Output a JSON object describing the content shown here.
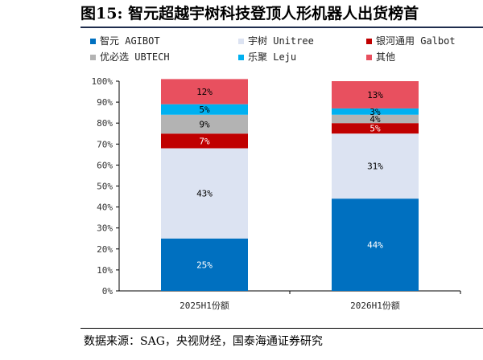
{
  "title": "图15:  智元超越宇树科技登顶人形机器人出货榜首",
  "source": "数据来源：SAG，央视财经，国泰海通证券研究",
  "chart_data": {
    "type": "bar",
    "stacked": true,
    "categories": [
      "2025H1份额",
      "2026H1份额"
    ],
    "ylim": [
      0,
      100
    ],
    "yticks": [
      "0%",
      "10%",
      "20%",
      "30%",
      "40%",
      "50%",
      "60%",
      "70%",
      "80%",
      "90%",
      "100%"
    ],
    "legend_position": "top",
    "series": [
      {
        "name": "智元 AGIBOT",
        "values": [
          25,
          44
        ],
        "labels": [
          "25%",
          "44%"
        ],
        "color": "#0070C0",
        "label_color": "#ffffff"
      },
      {
        "name": "宇树 Unitree",
        "values": [
          43,
          31
        ],
        "labels": [
          "43%",
          "31%"
        ],
        "color": "#DCE3F2",
        "label_color": "#000000"
      },
      {
        "name": "银河通用 Galbot",
        "values": [
          7,
          5
        ],
        "labels": [
          "7%",
          "5%"
        ],
        "color": "#C00000",
        "label_color": "#ffffff"
      },
      {
        "name": "优必选 UBTECH",
        "values": [
          9,
          4
        ],
        "labels": [
          "9%",
          "4%"
        ],
        "color": "#B3B3B3",
        "label_color": "#000000"
      },
      {
        "name": "乐聚 Leju",
        "values": [
          5,
          3
        ],
        "labels": [
          "5%",
          "3%"
        ],
        "color": "#00B0F0",
        "label_color": "#000000"
      },
      {
        "name": "其他",
        "values": [
          12,
          13
        ],
        "labels": [
          "12%",
          "13%"
        ],
        "color": "#E8505F",
        "label_color": "#000000"
      }
    ]
  }
}
